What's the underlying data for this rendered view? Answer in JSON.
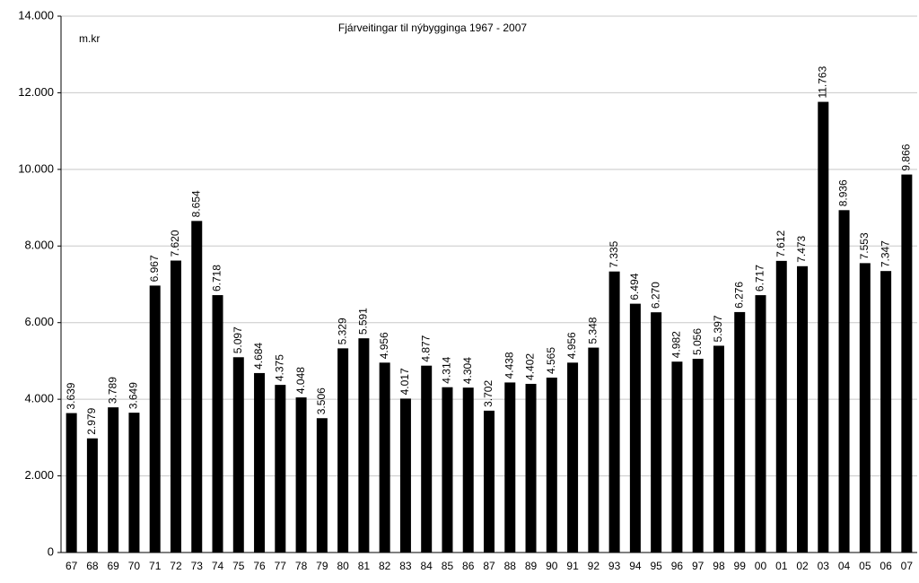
{
  "chart_data": {
    "type": "bar",
    "title": "Fjárveitingar til nýbygginga 1967 - 2007",
    "y_label": "m.kr",
    "categories": [
      "67",
      "68",
      "69",
      "70",
      "71",
      "72",
      "73",
      "74",
      "75",
      "76",
      "77",
      "78",
      "79",
      "80",
      "81",
      "82",
      "83",
      "84",
      "85",
      "86",
      "87",
      "88",
      "89",
      "90",
      "91",
      "92",
      "93",
      "94",
      "95",
      "96",
      "97",
      "98",
      "99",
      "00",
      "01",
      "02",
      "03",
      "04",
      "05",
      "06",
      "07"
    ],
    "values": [
      3639,
      2979,
      3789,
      3649,
      6967,
      7620,
      8654,
      6718,
      5097,
      4684,
      4375,
      4048,
      3506,
      5329,
      5591,
      4956,
      4017,
      4877,
      4314,
      4304,
      3702,
      4438,
      4402,
      4565,
      4956,
      5348,
      7335,
      6494,
      6270,
      4982,
      5056,
      5397,
      6276,
      6717,
      7612,
      7473,
      11763,
      8936,
      7553,
      7347,
      9866
    ],
    "value_labels": [
      "3.639",
      "2.979",
      "3.789",
      "3.649",
      "6.967",
      "7.620",
      "8.654",
      "6.718",
      "5.097",
      "4.684",
      "4.375",
      "4.048",
      "3.506",
      "5.329",
      "5.591",
      "4.956",
      "4.017",
      "4.877",
      "4.314",
      "4.304",
      "3.702",
      "4.438",
      "4.402",
      "4.565",
      "4.956",
      "5.348",
      "7.335",
      "6.494",
      "6.270",
      "4.982",
      "5.056",
      "5.397",
      "6.276",
      "6.717",
      "7.612",
      "7.473",
      "11.763",
      "8.936",
      "7.553",
      "7.347",
      "9.866"
    ],
    "color": "#000000",
    "ylim": [
      0,
      14000
    ],
    "yticks": [
      0,
      {
        "value": 2000,
        "label": "2.000"
      },
      {
        "value": 4000,
        "label": "4.000"
      },
      {
        "value": 6000,
        "label": "6.000"
      },
      {
        "value": 8000,
        "label": "8.000"
      },
      {
        "value": 10000,
        "label": "10.000"
      },
      {
        "value": 12000,
        "label": "12.000"
      },
      {
        "value": 14000,
        "label": "14.000"
      }
    ],
    "grid": true
  }
}
